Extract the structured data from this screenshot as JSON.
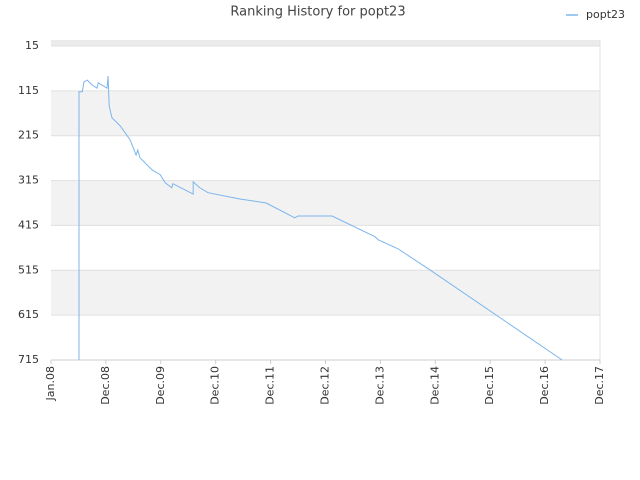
{
  "chart_data": {
    "type": "line",
    "title": "Ranking History for popt23",
    "x": [
      0.51,
      0.51,
      0.57,
      0.6,
      0.66,
      0.75,
      0.84,
      0.86,
      1.02,
      1.04,
      1.06,
      1.11,
      1.26,
      1.44,
      1.55,
      1.58,
      1.62,
      1.84,
      1.99,
      2.08,
      2.2,
      2.22,
      2.59,
      2.59,
      2.71,
      2.86,
      3.44,
      3.92,
      4.44,
      4.5,
      5.12,
      5.9,
      5.96,
      6.32,
      6.9,
      9.31
    ],
    "series": [
      {
        "name": "popt23",
        "color": "#7cb5ec",
        "values": [
          715,
          117,
          117,
          95,
          91,
          102,
          109,
          97,
          109,
          82,
          149,
          175,
          193,
          224,
          258,
          247,
          264,
          291,
          302,
          320,
          331,
          322,
          345,
          318,
          331,
          342,
          356,
          365,
          398,
          394,
          394,
          440,
          447,
          467,
          514,
          715
        ]
      }
    ],
    "xlim": [
      0,
      10
    ],
    "xticks": [
      {
        "value": 0,
        "label": "Jan.08"
      },
      {
        "value": 1,
        "label": "Dec.08"
      },
      {
        "value": 2,
        "label": "Dec.09"
      },
      {
        "value": 3,
        "label": "Dec.10"
      },
      {
        "value": 4,
        "label": "Dec.11"
      },
      {
        "value": 5,
        "label": "Dec.12"
      },
      {
        "value": 6,
        "label": "Dec.13"
      },
      {
        "value": 7,
        "label": "Dec.14"
      },
      {
        "value": 8,
        "label": "Dec.15"
      },
      {
        "value": 9,
        "label": "Dec.16"
      },
      {
        "value": 10,
        "label": "Dec.17"
      }
    ],
    "ylim": [
      715,
      15
    ],
    "yticks": [
      15,
      115,
      215,
      315,
      415,
      515,
      615,
      715
    ],
    "grid": true
  }
}
